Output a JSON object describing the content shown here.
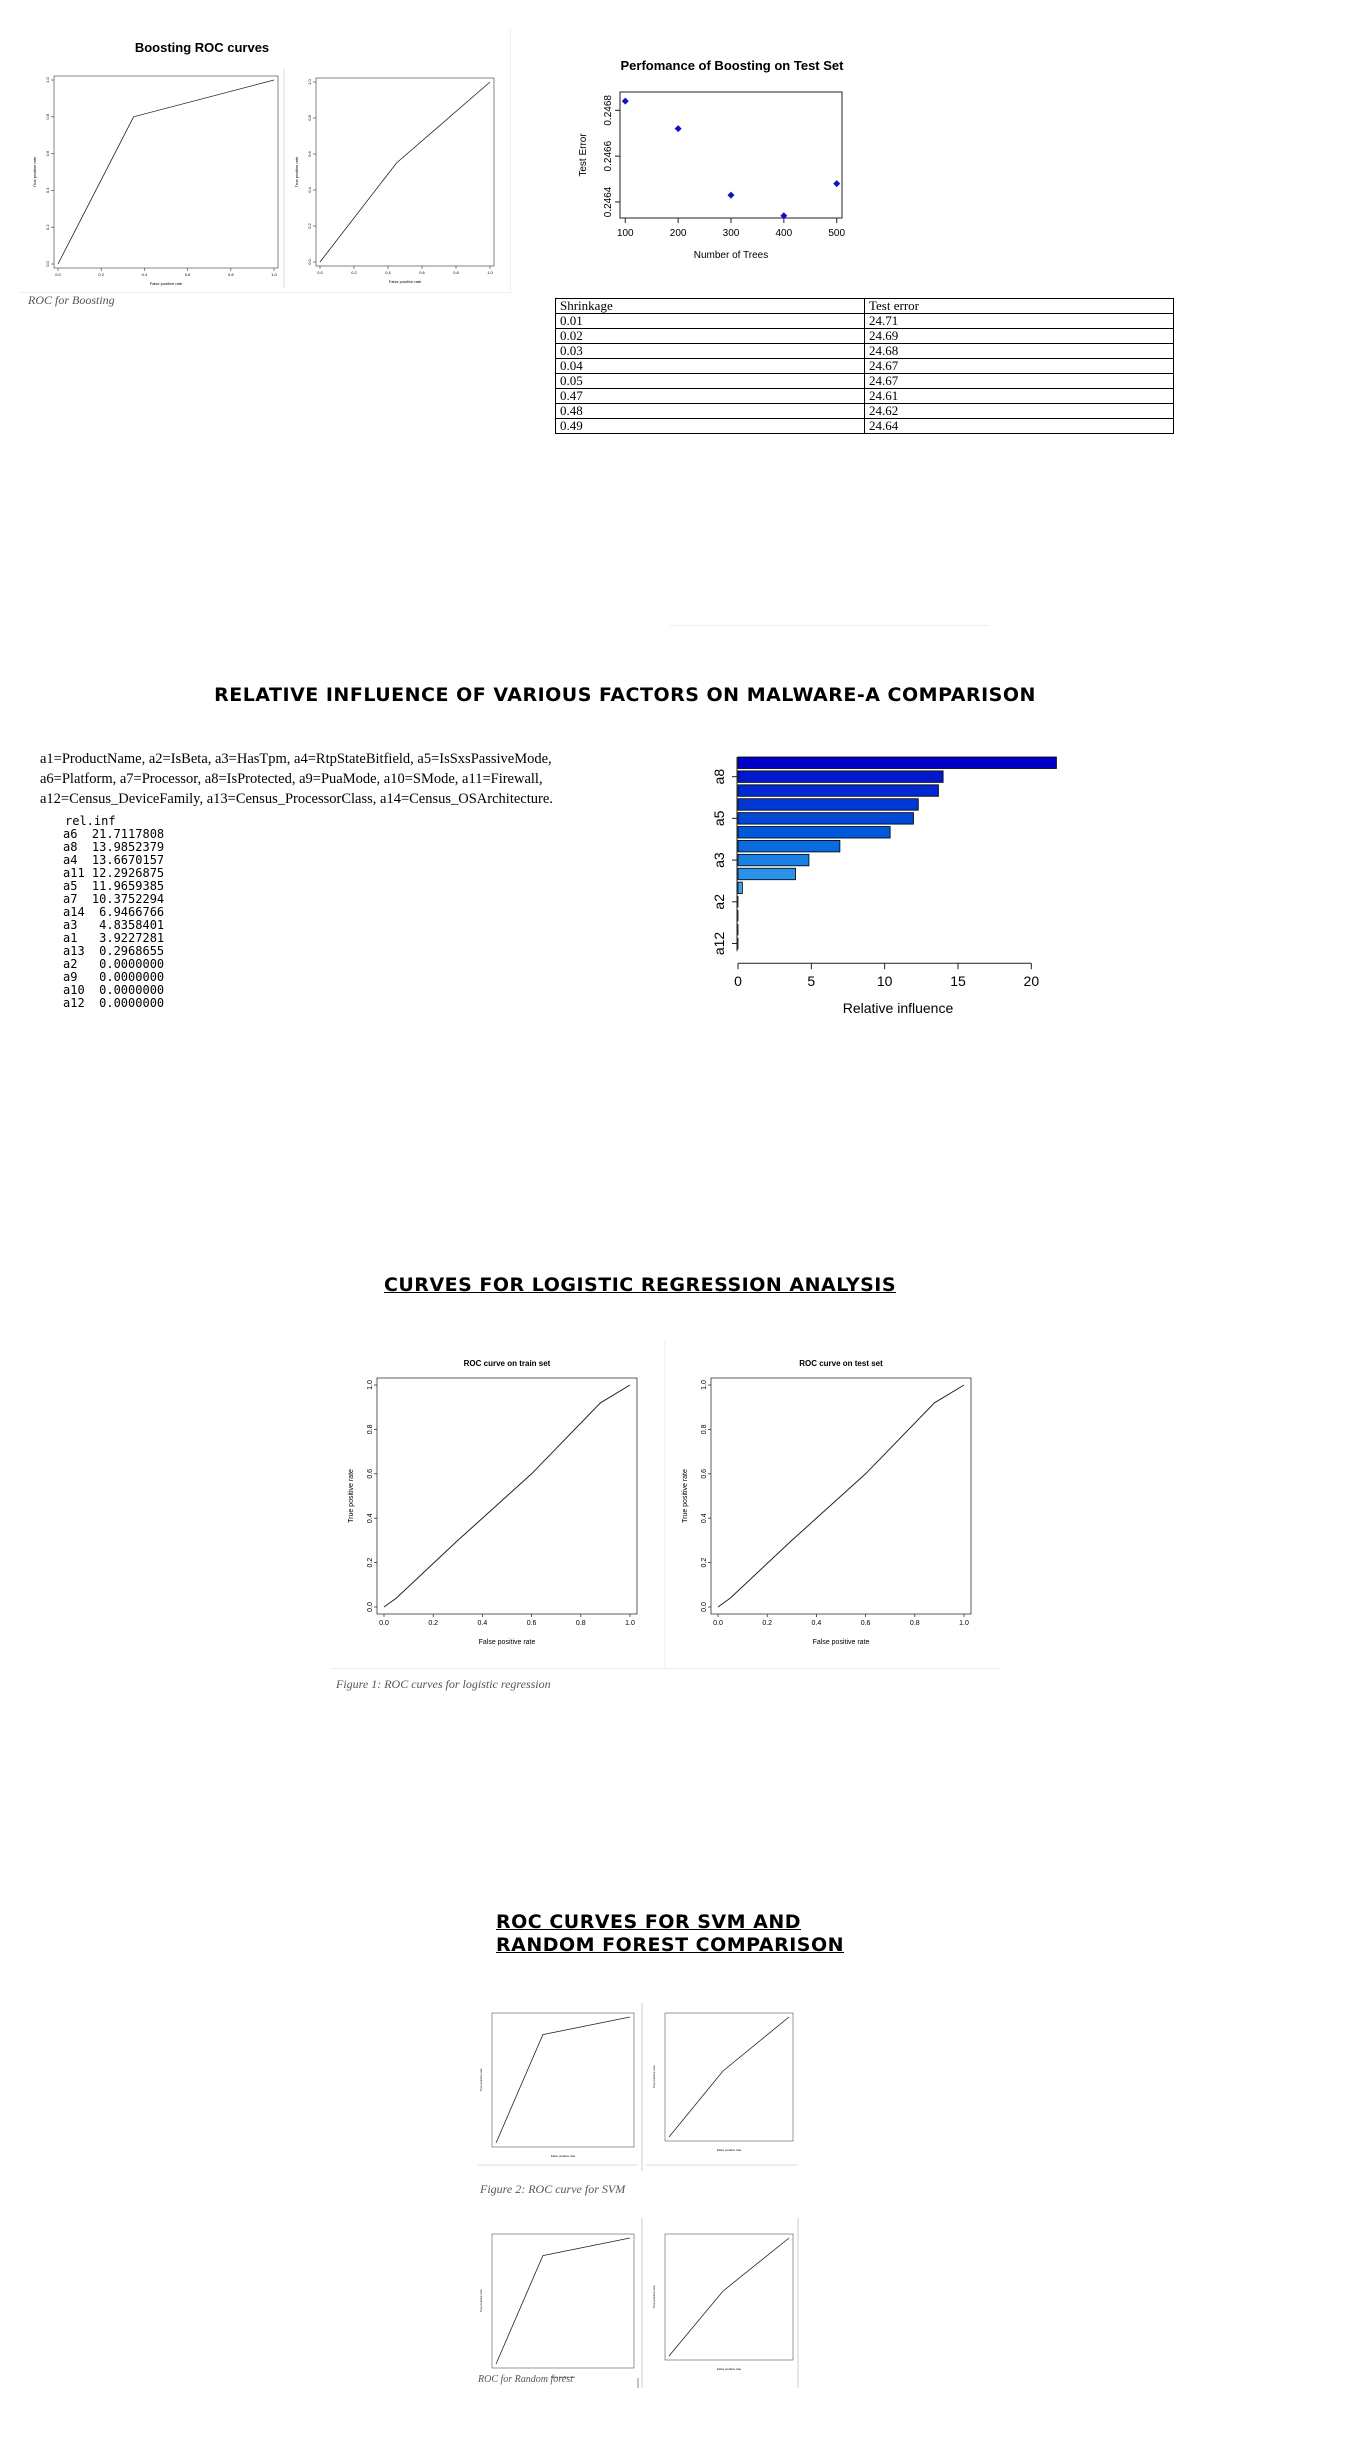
{
  "sections": {
    "relative_influence_title": "RELATIVE INFLUENCE OF VARIOUS FACTORS ON MALWARE-A COMPARISON",
    "logistic_title": "CURVES FOR LOGISTIC REGRESSION ANALYSIS",
    "svm_rf_title_line1": "ROC CURVES FOR SVM AND",
    "svm_rf_title_line2": "RANDOM FOREST COMPARISON"
  },
  "captions": {
    "boosting": "ROC for Boosting",
    "logistic": "Figure 1: ROC curves for logistic regression",
    "svm": "Figure 2: ROC curve for SVM",
    "rf": "ROC for Random forest"
  },
  "legend_text": {
    "line1": "a1=ProductName, a2=IsBeta, a3=HasTpm, a4=RtpStateBitfield, a5=IsSxsPassiveMode,",
    "line2": "a6=Platform, a7=Processor, a8=IsProtected, a9=PuaMode, a10=SMode, a11=Firewall,",
    "line3": "a12=Census_DeviceFamily, a13=Census_ProcessorClass, a14=Census_OSArchitecture."
  },
  "relinf_output": {
    "header": "rel.inf",
    "rows": [
      {
        "label": "a6",
        "value": "21.7117808"
      },
      {
        "label": "a8",
        "value": "13.9852379"
      },
      {
        "label": "a4",
        "value": "13.6670157"
      },
      {
        "label": "a11",
        "value": "12.2926875"
      },
      {
        "label": "a5",
        "value": "11.9659385"
      },
      {
        "label": "a7",
        "value": "10.3752294"
      },
      {
        "label": "a14",
        "value": "6.9466766"
      },
      {
        "label": "a3",
        "value": "4.8358401"
      },
      {
        "label": "a1",
        "value": "3.9227281"
      },
      {
        "label": "a13",
        "value": "0.2968655"
      },
      {
        "label": "a2",
        "value": "0.0000000"
      },
      {
        "label": "a9",
        "value": "0.0000000"
      },
      {
        "label": "a10",
        "value": "0.0000000"
      },
      {
        "label": "a12",
        "value": "0.0000000"
      }
    ]
  },
  "shrinkage_table": {
    "headers": [
      "Shrinkage",
      "Test error"
    ],
    "rows": [
      [
        "0.01",
        "24.71"
      ],
      [
        "0.02",
        "24.69"
      ],
      [
        "0.03",
        "24.68"
      ],
      [
        "0.04",
        "24.67"
      ],
      [
        "0.05",
        "24.67"
      ],
      [
        "0.47",
        "24.61"
      ],
      [
        "0.48",
        "24.62"
      ],
      [
        "0.49",
        "24.64"
      ]
    ]
  },
  "chart_data": [
    {
      "id": "boosting_roc_left",
      "type": "line",
      "title": "Boosting ROC curves",
      "xlabel": "False positive rate",
      "ylabel": "True positive rate",
      "xlim": [
        0,
        1
      ],
      "ylim": [
        0,
        1
      ],
      "xticks": [
        "0.0",
        "0.2",
        "0.4",
        "0.6",
        "0.8",
        "1.0"
      ],
      "yticks": [
        "0.0",
        "0.2",
        "0.4",
        "0.6",
        "0.8",
        "1.0"
      ],
      "series": [
        {
          "x": [
            0,
            0.35,
            1
          ],
          "y": [
            0,
            0.8,
            1
          ]
        }
      ]
    },
    {
      "id": "boosting_roc_right",
      "type": "line",
      "xlabel": "False positive rate",
      "ylabel": "True positive rate",
      "xlim": [
        0,
        1
      ],
      "ylim": [
        0,
        1
      ],
      "xticks": [
        "0.0",
        "0.2",
        "0.4",
        "0.6",
        "0.8",
        "1.0"
      ],
      "yticks": [
        "0.0",
        "0.2",
        "0.4",
        "0.6",
        "0.8",
        "1.0"
      ],
      "series": [
        {
          "x": [
            0,
            0.45,
            1
          ],
          "y": [
            0,
            0.55,
            1
          ]
        }
      ]
    },
    {
      "id": "boosting_test_error",
      "type": "scatter",
      "title": "Perfomance of Boosting on Test Set",
      "xlabel": "Number of Trees",
      "ylabel": "Test Error",
      "xlim": [
        90,
        510
      ],
      "ylim": [
        0.24633,
        0.24688
      ],
      "xticks": [
        "100",
        "200",
        "300",
        "400",
        "500"
      ],
      "xtick_values": [
        100,
        200,
        300,
        400,
        500
      ],
      "yticks": [
        "0.2464",
        "0.2466",
        "0.2468"
      ],
      "ytick_values": [
        0.2464,
        0.2466,
        0.2468
      ],
      "point_color": "#1010c8",
      "x": [
        100,
        200,
        300,
        400,
        500
      ],
      "y": [
        0.24684,
        0.24672,
        0.24643,
        0.24634,
        0.24648
      ]
    },
    {
      "id": "relative_influence",
      "type": "bar",
      "orientation": "horizontal",
      "xlabel": "Relative influence",
      "xlim": [
        0,
        22.5
      ],
      "xticks": [
        "0",
        "5",
        "10",
        "15",
        "20"
      ],
      "xtick_values": [
        0,
        5,
        10,
        15,
        20
      ],
      "ytick_labels": [
        {
          "label": "a8",
          "category": "a8"
        },
        {
          "label": "a5",
          "category": "a5"
        },
        {
          "label": "a3",
          "category": "a3"
        },
        {
          "label": "a2",
          "category": "a2"
        },
        {
          "label": "a12",
          "category": "a12"
        }
      ],
      "categories": [
        "a6",
        "a8",
        "a4",
        "a11",
        "a5",
        "a7",
        "a14",
        "a3",
        "a1",
        "a13",
        "a2",
        "a9",
        "a10",
        "a12"
      ],
      "values": [
        21.7117808,
        13.9852379,
        13.6670157,
        12.2926875,
        11.9659385,
        10.3752294,
        6.9466766,
        4.8358401,
        3.9227281,
        0.2968655,
        0,
        0,
        0,
        0
      ],
      "colors": [
        "#0000c8",
        "#0018cc",
        "#0028d0",
        "#0038d4",
        "#0048d8",
        "#0058dc",
        "#0a6ae0",
        "#1a80e4",
        "#2a92e8",
        "#3aa6ec",
        "#4ab8f0",
        "#5acaf4",
        "#6ad8f6",
        "#7ae4f8"
      ]
    },
    {
      "id": "logistic_train",
      "type": "line",
      "title": "ROC curve on train set",
      "xlabel": "False positive rate",
      "ylabel": "True positive rate",
      "xlim": [
        0,
        1
      ],
      "ylim": [
        0,
        1
      ],
      "xticks": [
        "0.0",
        "0.2",
        "0.4",
        "0.6",
        "0.8",
        "1.0"
      ],
      "yticks": [
        "0.0",
        "0.2",
        "0.4",
        "0.6",
        "0.8",
        "1.0"
      ],
      "series": [
        {
          "x": [
            0,
            0.05,
            0.3,
            0.6,
            0.88,
            1
          ],
          "y": [
            0,
            0.04,
            0.3,
            0.6,
            0.92,
            1
          ]
        }
      ]
    },
    {
      "id": "logistic_test",
      "type": "line",
      "title": "ROC curve on test set",
      "xlabel": "False positive rate",
      "ylabel": "True positive rate",
      "xlim": [
        0,
        1
      ],
      "ylim": [
        0,
        1
      ],
      "xticks": [
        "0.0",
        "0.2",
        "0.4",
        "0.6",
        "0.8",
        "1.0"
      ],
      "yticks": [
        "0.0",
        "0.2",
        "0.4",
        "0.6",
        "0.8",
        "1.0"
      ],
      "series": [
        {
          "x": [
            0,
            0.05,
            0.3,
            0.6,
            0.88,
            1
          ],
          "y": [
            0,
            0.04,
            0.3,
            0.6,
            0.92,
            1
          ]
        }
      ]
    },
    {
      "id": "svm_roc_left",
      "type": "line",
      "xlabel": "False positive rate",
      "ylabel": "True positive rate",
      "xlim": [
        0,
        1
      ],
      "ylim": [
        0,
        1
      ],
      "series": [
        {
          "x": [
            0,
            0.35,
            1
          ],
          "y": [
            0,
            0.86,
            1
          ]
        }
      ]
    },
    {
      "id": "svm_roc_right",
      "type": "line",
      "xlabel": "False positive rate",
      "ylabel": "True positive rate",
      "xlim": [
        0,
        1
      ],
      "ylim": [
        0,
        1
      ],
      "series": [
        {
          "x": [
            0,
            0.45,
            1
          ],
          "y": [
            0,
            0.55,
            1
          ]
        }
      ]
    },
    {
      "id": "rf_roc_left",
      "type": "line",
      "xlabel": "False positive rate",
      "ylabel": "True positive rate",
      "xlim": [
        0,
        1
      ],
      "ylim": [
        0,
        1
      ],
      "series": [
        {
          "x": [
            0,
            0.35,
            1
          ],
          "y": [
            0,
            0.86,
            1
          ]
        }
      ]
    },
    {
      "id": "rf_roc_right",
      "type": "line",
      "xlabel": "False positive rate",
      "ylabel": "True positive rate",
      "xlim": [
        0,
        1
      ],
      "ylim": [
        0,
        1
      ],
      "series": [
        {
          "x": [
            0,
            0.45,
            1
          ],
          "y": [
            0,
            0.55,
            1
          ]
        }
      ]
    }
  ]
}
